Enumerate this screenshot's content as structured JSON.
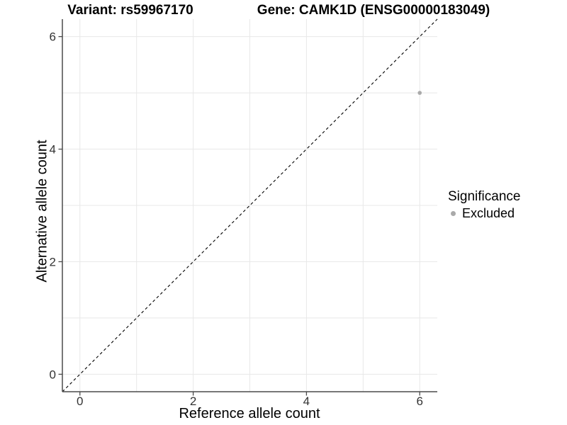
{
  "titles": {
    "variant": "Variant: rs59967170",
    "gene": "Gene: CAMK1D (ENSG00000183049)"
  },
  "axes": {
    "x": {
      "label": "Reference allele count"
    },
    "y": {
      "label": "Alternative allele count"
    }
  },
  "legend": {
    "title": "Significance",
    "items": [
      {
        "label": "Excluded",
        "color": "#aaaaaa"
      }
    ]
  },
  "colors": {
    "point": "#aaaaaa",
    "grid": "#e8e8e8",
    "axis": "#4a4a4a",
    "tick": "#4a4a4a",
    "tick_label": "#333333",
    "reference_line": "#000000",
    "background": "#ffffff"
  },
  "chart_data": {
    "type": "scatter",
    "title_left": "Variant: rs59967170",
    "title_right": "Gene: CAMK1D (ENSG00000183049)",
    "xlabel": "Reference allele count",
    "ylabel": "Alternative allele count",
    "xlim": [
      -0.31,
      6.31
    ],
    "ylim": [
      -0.31,
      6.31
    ],
    "x_ticks": [
      0,
      2,
      4,
      6
    ],
    "y_ticks": [
      0,
      2,
      4,
      6
    ],
    "x_grid": [
      0,
      1,
      2,
      3,
      4,
      5,
      6
    ],
    "y_grid": [
      0,
      1,
      2,
      3,
      4,
      5,
      6
    ],
    "grid": "on",
    "legend_position": "right",
    "series": [
      {
        "name": "Excluded",
        "color": "#aaaaaa",
        "points": [
          {
            "x": 6,
            "y": 5
          }
        ]
      }
    ],
    "reference_line": {
      "type": "identity y=x",
      "style": "dashed",
      "color": "#000000"
    }
  }
}
